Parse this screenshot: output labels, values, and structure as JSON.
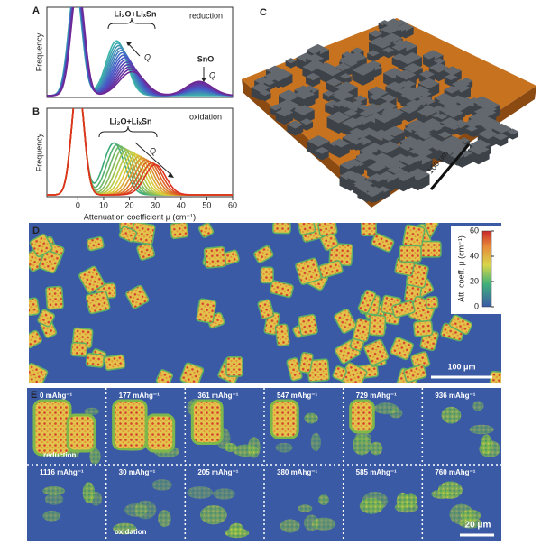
{
  "panels": {
    "a": {
      "label": "A",
      "y_label": "Frequency",
      "bracket_label": "Li₂O+LiₓSn",
      "arrow_label": "Q",
      "peak_label": "SnO",
      "peak_arrow_label": "Q",
      "process": "reduction"
    },
    "b": {
      "label": "B",
      "y_label": "Frequency",
      "bracket_label": "Li₂O+LiₓSn",
      "arrow_label": "Q",
      "process": "oxidation",
      "x_label": "Attenuation coefficient μ (cm⁻¹)",
      "xlim": [
        -12,
        60
      ],
      "xticks": [
        0,
        10,
        20,
        30,
        40,
        50,
        60
      ]
    },
    "c": {
      "label": "C",
      "scale_bar": "100 μm"
    },
    "d": {
      "label": "D",
      "colorbar_label": "Att. coeff. μ (cm⁻¹)",
      "colorbar_lim": [
        0,
        60
      ],
      "colorbar_ticks": [
        0,
        20,
        40,
        60
      ],
      "scale_bar": "100 μm"
    },
    "e": {
      "label": "E",
      "capacities": [
        [
          "0 mAhg⁻¹",
          "177 mAhg⁻¹",
          "361 mAhg⁻¹",
          "547 mAhg⁻¹",
          "729 mAhg⁻¹",
          "936 mAhg⁻¹"
        ],
        [
          "1116 mAhg⁻¹",
          "30 mAhg⁻¹",
          "205 mAhg⁻¹",
          "380 mAhg⁻¹",
          "585 mAhg⁻¹",
          "760 mAhg⁻¹"
        ]
      ],
      "reduction_label": "reduction",
      "oxidation_label": "oxidation",
      "scale_bar": "20 μm"
    }
  }
}
